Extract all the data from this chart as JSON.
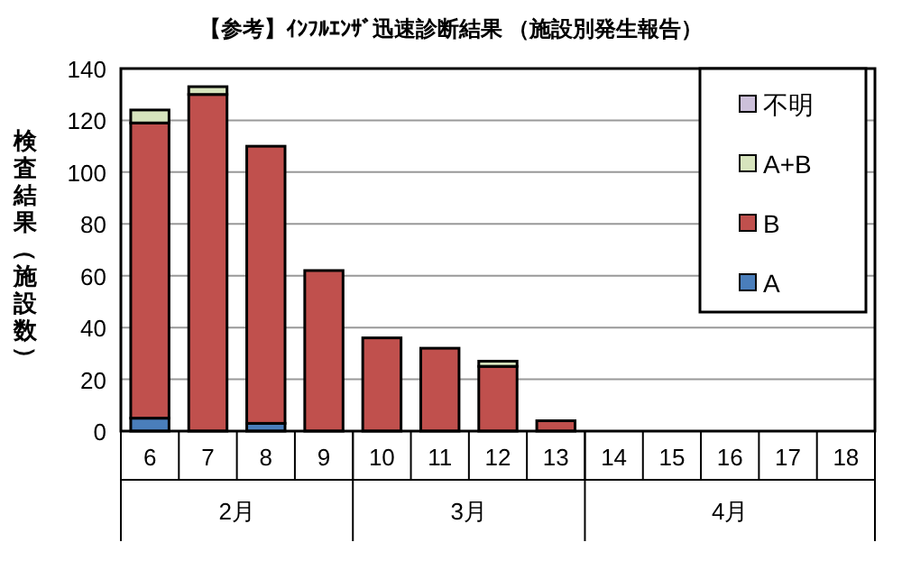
{
  "chart_data": {
    "type": "bar",
    "title": "【参考】ｲﾝﾌﾙｴﾝｻﾞ迅速診断結果 （施設別発生報告）",
    "ylabel": "検査結果（施設数）",
    "categories": [
      "6",
      "7",
      "8",
      "9",
      "10",
      "11",
      "12",
      "13",
      "14",
      "15",
      "16",
      "17",
      "18"
    ],
    "stacked": true,
    "series": [
      {
        "name": "A",
        "color": "#4a7ebb",
        "values": [
          5,
          0,
          3,
          null,
          0,
          0,
          0,
          0,
          0,
          0,
          0,
          0,
          0
        ]
      },
      {
        "name": "B",
        "color": "#c0504d",
        "values": [
          114,
          130,
          107,
          62,
          36,
          32,
          25,
          4,
          0,
          0,
          0,
          0,
          0
        ]
      },
      {
        "name": "A+B",
        "color": "#d7e4bd",
        "values": [
          5,
          3,
          0,
          0,
          0,
          0,
          2,
          0,
          0,
          0,
          0,
          0,
          0
        ]
      },
      {
        "name": "不明",
        "color": "#ccc0da",
        "values": [
          0,
          0,
          0,
          0,
          0,
          0,
          0,
          0,
          0,
          0,
          0,
          0,
          0
        ]
      }
    ],
    "annotations": [
      "2月",
      "3月",
      "4月"
    ],
    "ylim": [
      0,
      140
    ],
    "yticks": [
      0,
      20,
      40,
      60,
      80,
      100,
      120,
      140
    ],
    "grid": "y",
    "legend": "top right"
  }
}
